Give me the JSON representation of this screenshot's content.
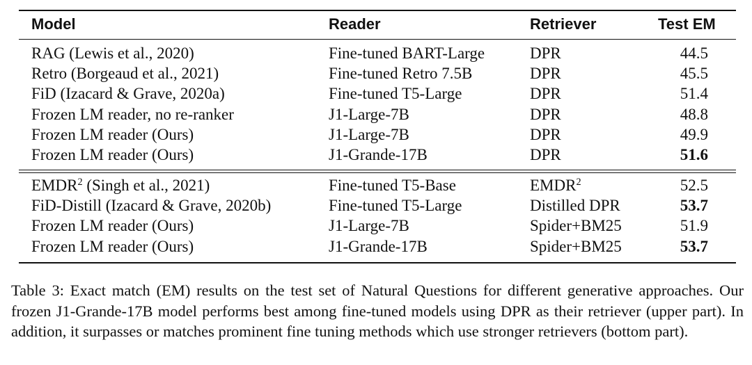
{
  "table": {
    "headers": {
      "model": "Model",
      "reader": "Reader",
      "retriever": "Retriever",
      "test_em": "Test EM"
    },
    "upper_rows": [
      {
        "model": "RAG (Lewis et al., 2020)",
        "reader": "Fine-tuned BART-Large",
        "retriever": "DPR",
        "em": "44.5",
        "bold": false
      },
      {
        "model": "Retro (Borgeaud et al., 2021)",
        "reader": "Fine-tuned Retro 7.5B",
        "retriever": "DPR",
        "em": "45.5",
        "bold": false
      },
      {
        "model": "FiD (Izacard & Grave, 2020a)",
        "reader": "Fine-tuned T5-Large",
        "retriever": "DPR",
        "em": "51.4",
        "bold": false
      },
      {
        "model": "Frozen LM reader, no re-ranker",
        "reader": "J1-Large-7B",
        "retriever": "DPR",
        "em": "48.8",
        "bold": false
      },
      {
        "model": "Frozen LM reader (Ours)",
        "reader": "J1-Large-7B",
        "retriever": "DPR",
        "em": "49.9",
        "bold": false
      },
      {
        "model": "Frozen LM reader (Ours)",
        "reader": "J1-Grande-17B",
        "retriever": "DPR",
        "em": "51.6",
        "bold": true
      }
    ],
    "lower_rows": [
      {
        "model": "EMDR",
        "model_sup": "2",
        "model_suffix": " (Singh et al., 2021)",
        "reader": "Fine-tuned T5-Base",
        "retriever": "EMDR",
        "retriever_sup": "2",
        "em": "52.5",
        "bold": false
      },
      {
        "model": "FiD-Distill (Izacard & Grave, 2020b)",
        "model_sup": "",
        "model_suffix": "",
        "reader": "Fine-tuned T5-Large",
        "retriever": "Distilled DPR",
        "retriever_sup": "",
        "em": "53.7",
        "bold": true
      },
      {
        "model": "Frozen LM reader (Ours)",
        "model_sup": "",
        "model_suffix": "",
        "reader": "J1-Large-7B",
        "retriever": "Spider+BM25",
        "retriever_sup": "",
        "em": "51.9",
        "bold": false
      },
      {
        "model": "Frozen LM reader (Ours)",
        "model_sup": "",
        "model_suffix": "",
        "reader": "J1-Grande-17B",
        "retriever": "Spider+BM25",
        "retriever_sup": "",
        "em": "53.7",
        "bold": true
      }
    ]
  },
  "caption": "Table 3: Exact match (EM) results on the test set of Natural Questions for different generative approaches. Our frozen J1-Grande-17B model performs best among fine-tuned models using DPR as their retriever (upper part). In addition, it surpasses or matches prominent fine tuning methods which use stronger retrievers (bottom part)."
}
